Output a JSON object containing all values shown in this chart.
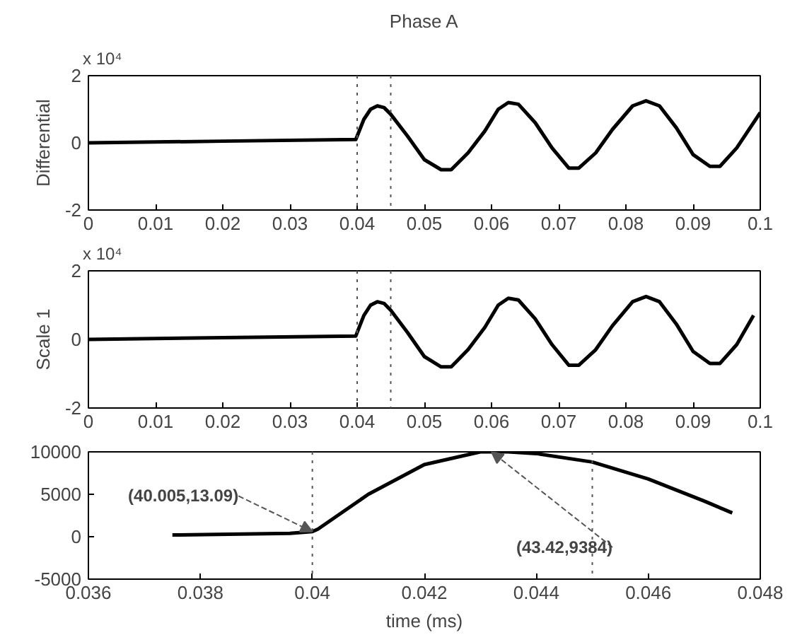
{
  "chart_data": [
    {
      "type": "line",
      "title": "Phase A",
      "ylabel": "Differential",
      "annotations": [
        "x 10⁴"
      ],
      "x": [
        0,
        0.02,
        0.0398,
        0.0402,
        0.041,
        0.042,
        0.043,
        0.044,
        0.045,
        0.0475,
        0.05,
        0.0525,
        0.054,
        0.0565,
        0.059,
        0.061,
        0.0625,
        0.064,
        0.0665,
        0.069,
        0.0715,
        0.073,
        0.0755,
        0.078,
        0.081,
        0.083,
        0.085,
        0.0875,
        0.09,
        0.0925,
        0.094,
        0.0965,
        0.1
      ],
      "series": [
        {
          "color": "#000000",
          "values": [
            0,
            0.05,
            0.1,
            0.3,
            0.7,
            1.0,
            1.1,
            1.05,
            0.85,
            0.2,
            -0.5,
            -0.8,
            -0.8,
            -0.3,
            0.35,
            1.0,
            1.2,
            1.15,
            0.6,
            -0.15,
            -0.75,
            -0.75,
            -0.3,
            0.4,
            1.1,
            1.25,
            1.1,
            0.45,
            -0.35,
            -0.7,
            -0.7,
            -0.15,
            0.9
          ]
        }
      ],
      "xlim": [
        0,
        0.1
      ],
      "xticks": [
        0,
        0.01,
        0.02,
        0.03,
        0.04,
        0.05,
        0.06,
        0.07,
        0.08,
        0.09,
        0.1
      ],
      "ylim": [
        -2,
        2
      ],
      "yticks": [
        -2,
        0,
        2
      ],
      "ref_lines": [
        {
          "axis": "x",
          "value": 0.04,
          "line_style": "dotted"
        },
        {
          "axis": "x",
          "value": 0.045,
          "line_style": "dotted"
        }
      ],
      "grid": false
    },
    {
      "type": "line",
      "ylabel": "Scale 1",
      "annotations": [
        "x 10⁴"
      ],
      "x": [
        0,
        0.02,
        0.0398,
        0.0402,
        0.041,
        0.042,
        0.043,
        0.044,
        0.045,
        0.0475,
        0.05,
        0.0525,
        0.054,
        0.0565,
        0.059,
        0.061,
        0.0625,
        0.064,
        0.0665,
        0.069,
        0.0715,
        0.073,
        0.0755,
        0.078,
        0.081,
        0.083,
        0.085,
        0.0875,
        0.09,
        0.0925,
        0.094,
        0.0965,
        0.099
      ],
      "series": [
        {
          "color": "#000000",
          "values": [
            0,
            0.05,
            0.1,
            0.3,
            0.7,
            1.0,
            1.1,
            1.05,
            0.85,
            0.2,
            -0.5,
            -0.8,
            -0.8,
            -0.3,
            0.35,
            1.0,
            1.2,
            1.15,
            0.6,
            -0.15,
            -0.75,
            -0.75,
            -0.3,
            0.4,
            1.1,
            1.25,
            1.1,
            0.45,
            -0.35,
            -0.7,
            -0.7,
            -0.15,
            0.7
          ]
        }
      ],
      "xlim": [
        0,
        0.1
      ],
      "xticks": [
        0,
        0.01,
        0.02,
        0.03,
        0.04,
        0.05,
        0.06,
        0.07,
        0.08,
        0.09,
        0.1
      ],
      "ylim": [
        -2,
        2
      ],
      "yticks": [
        -2,
        0,
        2
      ],
      "ref_lines": [
        {
          "axis": "x",
          "value": 0.04,
          "line_style": "dotted"
        },
        {
          "axis": "x",
          "value": 0.045,
          "line_style": "dotted"
        }
      ],
      "grid": false
    },
    {
      "type": "line",
      "xlabel": "time (ms)",
      "annotations": [
        {
          "text": "(40.005,13.09)",
          "x": 0.04,
          "y": 600
        },
        {
          "text": "(43.42,9384)",
          "x": 0.0432,
          "y": 10000
        }
      ],
      "x": [
        0.0375,
        0.0396,
        0.04,
        0.0401,
        0.041,
        0.042,
        0.043,
        0.0435,
        0.044,
        0.045,
        0.046,
        0.047,
        0.0475
      ],
      "series": [
        {
          "color": "#000000",
          "values": [
            200,
            400,
            600,
            900,
            5000,
            8500,
            10000,
            10000,
            9800,
            8800,
            6800,
            4200,
            2800
          ]
        }
      ],
      "xlim": [
        0.036,
        0.048
      ],
      "xticks": [
        0.036,
        0.038,
        0.04,
        0.042,
        0.044,
        0.046,
        0.048
      ],
      "ylim": [
        -5000,
        10000
      ],
      "yticks": [
        -5000,
        0,
        5000,
        10000
      ],
      "ref_lines": [
        {
          "axis": "x",
          "value": 0.04,
          "line_style": "dotted"
        },
        {
          "axis": "x",
          "value": 0.045,
          "line_style": "dotted"
        }
      ],
      "grid": false
    }
  ]
}
